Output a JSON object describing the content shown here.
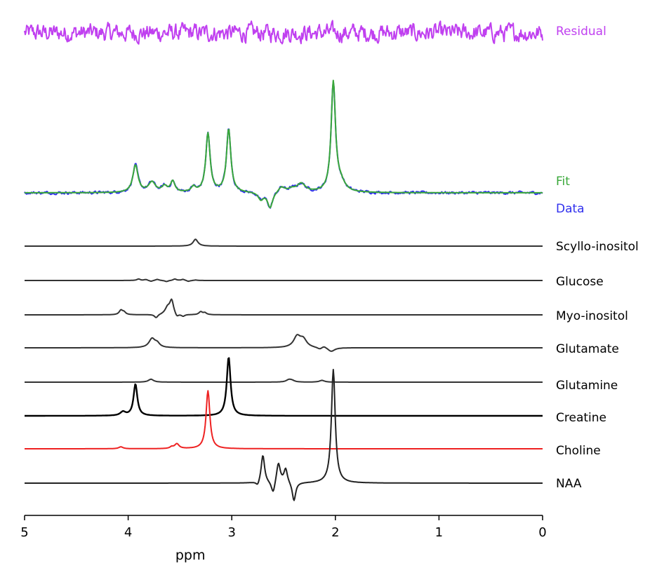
{
  "chart_data": {
    "type": "line",
    "title": "",
    "xlabel": "ppm",
    "ylabel": "",
    "xlim": [
      5,
      0
    ],
    "x_reversed": true,
    "x_ticks": [
      5,
      4,
      3,
      2,
      1,
      0
    ],
    "x_tick_labels": [
      "5",
      "4",
      "3",
      "2",
      "1",
      "0"
    ],
    "grid": false,
    "legend": "labels at right end of each trace",
    "series": [
      {
        "name": "Residual",
        "color": "#c040f0",
        "kind": "noise",
        "amplitude": 0.12,
        "peaks": []
      },
      {
        "name": "Fit",
        "color": "#3aa83a",
        "kind": "fit",
        "peaks": [
          [
            3.93,
            0.95,
            0.03
          ],
          [
            3.77,
            0.35,
            0.04
          ],
          [
            3.65,
            0.2,
            0.03
          ],
          [
            3.57,
            0.38,
            0.025
          ],
          [
            3.37,
            0.18,
            0.025
          ],
          [
            3.23,
            2.05,
            0.025
          ],
          [
            3.03,
            2.2,
            0.025
          ],
          [
            2.72,
            -0.25,
            0.03
          ],
          [
            2.63,
            -0.55,
            0.03
          ],
          [
            2.52,
            0.2,
            0.04
          ],
          [
            2.42,
            0.1,
            0.04
          ],
          [
            2.33,
            0.3,
            0.05
          ],
          [
            2.02,
            3.8,
            0.025
          ],
          [
            1.95,
            0.3,
            0.05
          ]
        ]
      },
      {
        "name": "Data",
        "color": "#3030ee",
        "kind": "data",
        "peaks": [
          [
            3.93,
            0.95,
            0.03
          ],
          [
            3.77,
            0.35,
            0.04
          ],
          [
            3.65,
            0.2,
            0.03
          ],
          [
            3.57,
            0.38,
            0.025
          ],
          [
            3.37,
            0.18,
            0.025
          ],
          [
            3.23,
            2.05,
            0.025
          ],
          [
            3.03,
            2.2,
            0.025
          ],
          [
            2.72,
            -0.25,
            0.03
          ],
          [
            2.63,
            -0.55,
            0.03
          ],
          [
            2.52,
            0.2,
            0.04
          ],
          [
            2.42,
            0.1,
            0.04
          ],
          [
            2.33,
            0.3,
            0.05
          ],
          [
            2.02,
            3.8,
            0.025
          ],
          [
            1.95,
            0.3,
            0.05
          ]
        ]
      },
      {
        "name": "Scyllo-inositol",
        "color": "#333333",
        "peaks": [
          [
            3.35,
            0.7,
            0.028
          ]
        ]
      },
      {
        "name": "Glucose",
        "color": "#333333",
        "peaks": [
          [
            3.9,
            0.15,
            0.02
          ],
          [
            3.83,
            0.1,
            0.02
          ],
          [
            3.78,
            -0.1,
            0.02
          ],
          [
            3.72,
            0.12,
            0.02
          ],
          [
            3.63,
            -0.12,
            0.02
          ],
          [
            3.55,
            0.15,
            0.02
          ],
          [
            3.47,
            0.12,
            0.02
          ],
          [
            3.42,
            -0.1,
            0.02
          ],
          [
            3.35,
            0.05,
            0.02
          ]
        ]
      },
      {
        "name": "Myo-inositol",
        "color": "#333333",
        "peaks": [
          [
            4.07,
            0.45,
            0.02
          ],
          [
            4.04,
            0.25,
            0.02
          ],
          [
            3.73,
            -0.35,
            0.02
          ],
          [
            3.62,
            0.7,
            0.03
          ],
          [
            3.58,
            1.4,
            0.022
          ],
          [
            3.53,
            -0.35,
            0.02
          ],
          [
            3.47,
            -0.2,
            0.02
          ],
          [
            3.3,
            0.3,
            0.02
          ],
          [
            3.26,
            0.2,
            0.02
          ]
        ]
      },
      {
        "name": "Glutamate",
        "color": "#333333",
        "peaks": [
          [
            3.77,
            0.9,
            0.035
          ],
          [
            3.72,
            0.4,
            0.03
          ],
          [
            2.37,
            1.1,
            0.04
          ],
          [
            2.31,
            0.8,
            0.04
          ],
          [
            2.15,
            -0.2,
            0.03
          ],
          [
            2.11,
            0.2,
            0.03
          ],
          [
            2.04,
            -0.4,
            0.04
          ]
        ]
      },
      {
        "name": "Glutamine",
        "color": "#333333",
        "peaks": [
          [
            3.78,
            0.3,
            0.03
          ],
          [
            2.45,
            0.22,
            0.03
          ],
          [
            2.42,
            0.15,
            0.03
          ],
          [
            2.13,
            0.18,
            0.03
          ]
        ]
      },
      {
        "name": "Creatine",
        "color": "#000000",
        "peaks": [
          [
            3.93,
            2.1,
            0.022
          ],
          [
            4.05,
            0.25,
            0.03
          ],
          [
            3.03,
            3.9,
            0.022
          ]
        ]
      },
      {
        "name": "Choline",
        "color": "#ee2222",
        "peaks": [
          [
            4.07,
            0.12,
            0.025
          ],
          [
            3.53,
            0.3,
            0.025
          ],
          [
            3.23,
            3.6,
            0.022
          ],
          [
            3.58,
            0.1,
            0.02
          ]
        ]
      },
      {
        "name": "NAA",
        "color": "#222222",
        "peaks": [
          [
            2.7,
            1.8,
            0.02
          ],
          [
            2.6,
            -0.8,
            0.022
          ],
          [
            2.55,
            1.3,
            0.022
          ],
          [
            2.48,
            0.9,
            0.02
          ],
          [
            2.4,
            -1.2,
            0.02
          ],
          [
            2.75,
            -0.3,
            0.02
          ],
          [
            2.02,
            7.2,
            0.022
          ]
        ]
      }
    ]
  }
}
